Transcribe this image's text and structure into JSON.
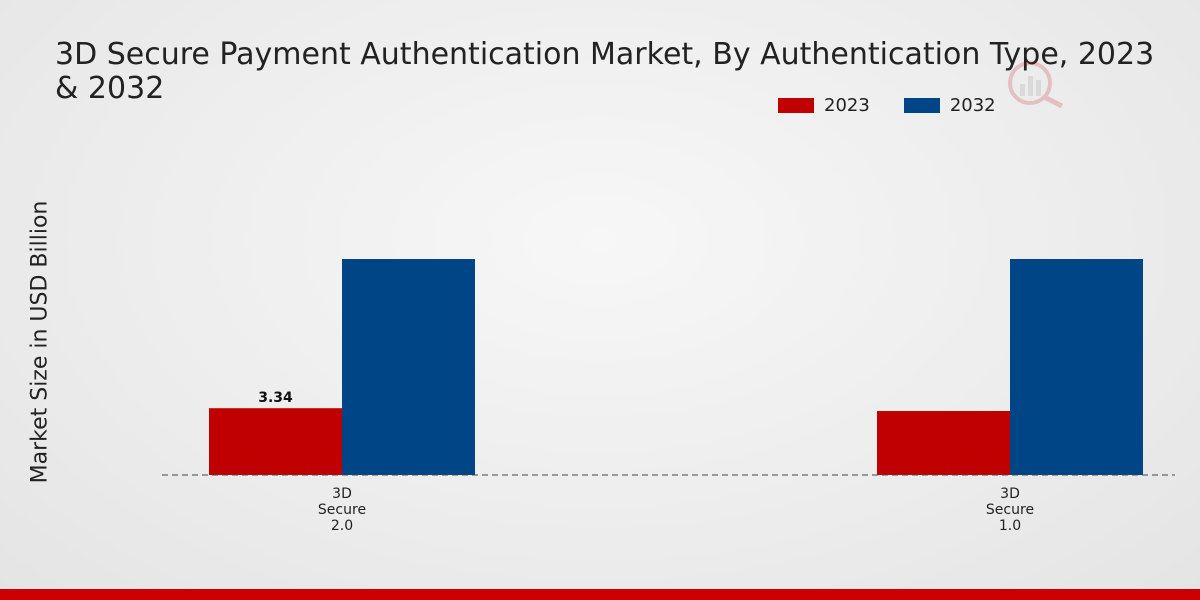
{
  "chart_data": {
    "type": "bar",
    "title": "3D Secure Payment Authentication Market, By Authentication Type, 2023 & 2032",
    "xlabel": "",
    "ylabel": "Market Size in USD Billion",
    "categories": [
      "3D Secure 2.0",
      "3D Secure 1.0"
    ],
    "category_label_lines": [
      [
        "3D",
        "Secure",
        "2.0"
      ],
      [
        "3D",
        "Secure",
        "1.0"
      ]
    ],
    "series": [
      {
        "name": "2023",
        "color": "#c00000",
        "values": [
          3.34,
          3.2
        ]
      },
      {
        "name": "2032",
        "color": "#004586",
        "values": [
          10.8,
          10.8
        ]
      }
    ],
    "data_labels": [
      {
        "series": 0,
        "index": 0,
        "text": "3.34"
      }
    ],
    "ylim": [
      0,
      16
    ],
    "grid": false,
    "legend_position": "top-right"
  },
  "colors": {
    "accent_bar": "#cc0000"
  }
}
